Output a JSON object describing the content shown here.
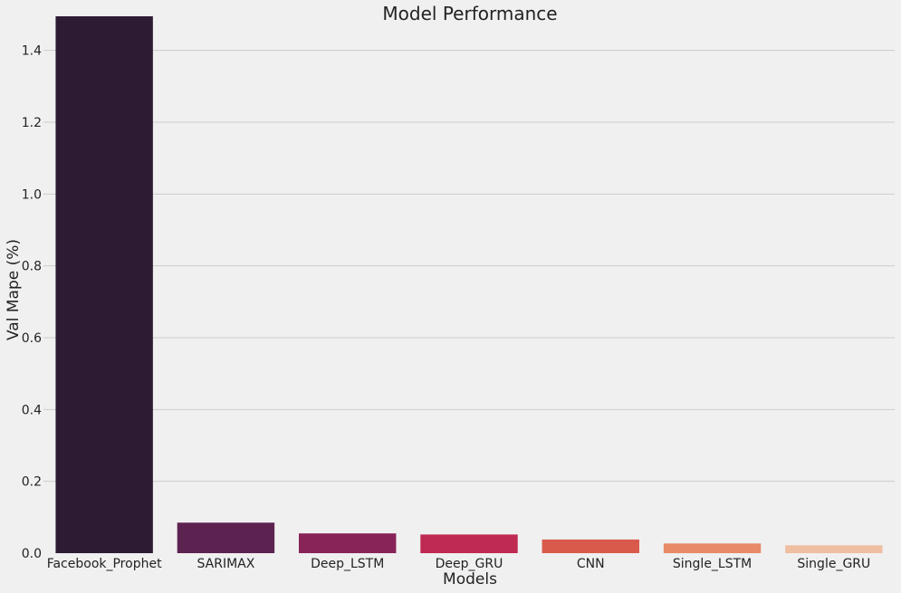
{
  "chart_data": {
    "type": "bar",
    "title": "Model Performance",
    "xlabel": "Models",
    "ylabel": "Val Mape (%)",
    "categories": [
      "Facebook_Prophet",
      "SARIMAX",
      "Deep_LSTM",
      "Deep_GRU",
      "CNN",
      "Single_LSTM",
      "Single_GRU"
    ],
    "values": [
      1.495,
      0.085,
      0.055,
      0.052,
      0.038,
      0.027,
      0.022
    ],
    "colors": [
      "#2d1b33",
      "#5c2250",
      "#882457",
      "#bf2a53",
      "#d95a4a",
      "#e78a67",
      "#f0bea0"
    ],
    "ylim": [
      0,
      1.5
    ],
    "yticks": [
      0.0,
      0.2,
      0.4,
      0.6,
      0.8,
      1.0,
      1.2,
      1.4
    ],
    "ytick_labels": [
      "0.0",
      "0.2",
      "0.4",
      "0.6",
      "0.8",
      "1.0",
      "1.2",
      "1.4"
    ],
    "grid": "y",
    "legend": "none"
  }
}
